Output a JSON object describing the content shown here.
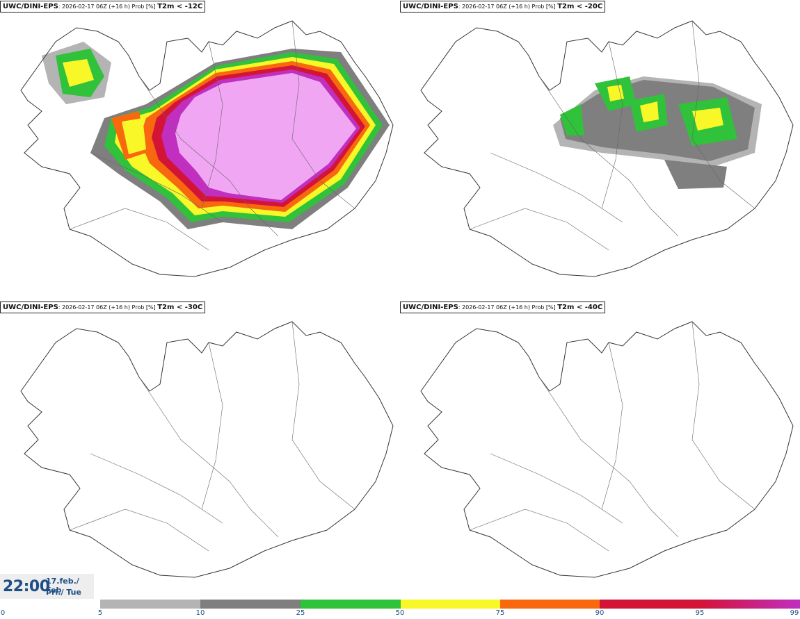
{
  "panels": [
    {
      "model": "UWC/DINI-EPS",
      "run": ": 2026-02-17 06Z (+16 h) Prob [%]",
      "field": "T2m < -12C"
    },
    {
      "model": "UWC/DINI-EPS",
      "run": ": 2026-02-17 06Z (+16 h) Prob [%]",
      "field": "T2m < -20C"
    },
    {
      "model": "UWC/DINI-EPS",
      "run": ": 2026-02-17 06Z (+16 h) Prob [%]",
      "field": "T2m < -30C"
    },
    {
      "model": "UWC/DINI-EPS",
      "run": ": 2026-02-17 06Z (+16 h) Prob [%]",
      "field": "T2m < -40C"
    }
  ],
  "valid_time": {
    "clock": "22:00",
    "date_line1": "17.feb./ Feb",
    "date_line2": "Þri./ Tue"
  },
  "colorbar": {
    "ticks": [
      "0",
      "5",
      "10",
      "25",
      "50",
      "75",
      "90",
      "95",
      "99"
    ],
    "colors": [
      "#b4b4b4",
      "#7f7f7f",
      "#2fc23a",
      "#f8f728",
      "#f8690f",
      "#d31437",
      "#c02fbf",
      "#f0a6f2"
    ]
  }
}
